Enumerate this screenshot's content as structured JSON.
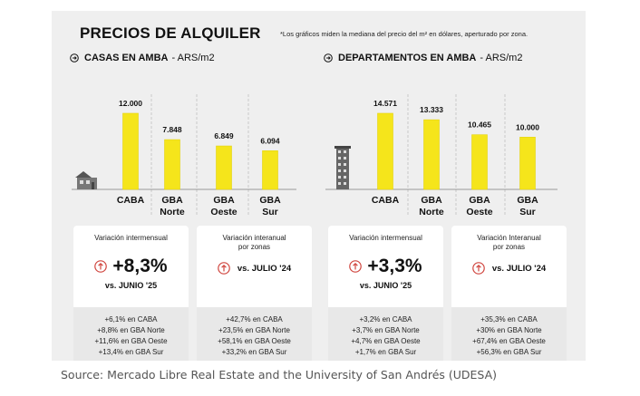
{
  "title": "PRECIOS DE ALQUILER",
  "footnote": "*Los gráficos miden la mediana del precio del m² en dólares, aperturado por zona.",
  "colors": {
    "bar": "#f5e51b",
    "bar_stroke": "#e3d30f",
    "icon_red": "#d0453e"
  },
  "chart_data": [
    {
      "type": "bar",
      "title": "CASAS EN AMBA",
      "unit": "- ARS/m2",
      "categories": [
        [
          "CABA"
        ],
        [
          "GBA",
          "Norte"
        ],
        [
          "GBA",
          "Oeste"
        ],
        [
          "GBA",
          "Sur"
        ]
      ],
      "values": [
        12000,
        7848,
        6849,
        6094
      ],
      "value_labels": [
        "12.000",
        "7.848",
        "6.849",
        "6.094"
      ],
      "ylim": [
        0,
        12000
      ],
      "grid": false,
      "icon": "house-icon"
    },
    {
      "type": "bar",
      "title": "DEPARTAMENTOS EN AMBA",
      "unit": "- ARS/m2",
      "categories": [
        [
          "CABA"
        ],
        [
          "GBA",
          "Norte"
        ],
        [
          "GBA",
          "Oeste"
        ],
        [
          "GBA",
          "Sur"
        ]
      ],
      "values": [
        14571,
        13333,
        10465,
        10000
      ],
      "value_labels": [
        "14.571",
        "13.333",
        "10.465",
        "10.000"
      ],
      "ylim": [
        0,
        14571
      ],
      "grid": false,
      "icon": "building-icon"
    }
  ],
  "cards": {
    "casas_mensual": {
      "label": "Variación intermensual",
      "value": "+8,3%",
      "vs": "vs. JUNIO '25",
      "items": [
        "+6,1% en CABA",
        "+8,8% en GBA Norte",
        "+11,6% en GBA Oeste",
        "+13,4% en GBA Sur"
      ]
    },
    "casas_anual": {
      "label_l1": "Variación interanual",
      "label_l2": "por zonas",
      "vs": "vs. JULIO '24",
      "items": [
        "+42,7% en CABA",
        "+23,5% en GBA Norte",
        "+58,1% en GBA Oeste",
        "+33,2% en GBA Sur"
      ]
    },
    "deptos_mensual": {
      "label": "Variación intermensual",
      "value": "+3,3%",
      "vs": "vs. JUNIO '25",
      "items": [
        "+3,2% en CABA",
        "+3,7% en GBA Norte",
        "+4,7% en GBA Oeste",
        "+1,7% en GBA Sur"
      ]
    },
    "deptos_anual": {
      "label_l1": "Variación Interanual",
      "label_l2": "por zonas",
      "vs": "vs. JULIO '24",
      "items": [
        "+35,3% en CABA",
        "+30% en GBA Norte",
        "+67,4% en GBA Oeste",
        "+56,3% en GBA Sur"
      ]
    }
  },
  "source": "Source: Mercado Libre Real Estate and the University of San Andrés (UDESA)"
}
